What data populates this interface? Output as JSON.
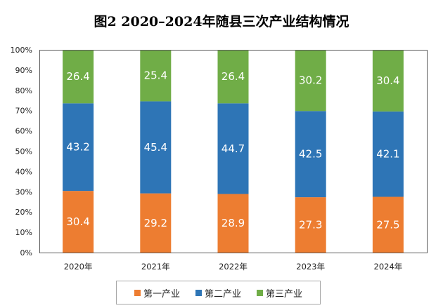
{
  "chart_data": {
    "type": "bar",
    "stacked": true,
    "title": "图2   2020–2024年随县三次产业结构情况",
    "xlabel": "",
    "ylabel": "",
    "categories": [
      "2020年",
      "2021年",
      "2022年",
      "2023年",
      "2024年"
    ],
    "series": [
      {
        "name": "第一产业",
        "color": "#ED7D31",
        "values": [
          30.4,
          29.2,
          28.9,
          27.3,
          27.5
        ]
      },
      {
        "name": "第二产业",
        "color": "#2E75B6",
        "values": [
          43.2,
          45.4,
          44.7,
          42.5,
          42.1
        ]
      },
      {
        "name": "第三产业",
        "color": "#70AD47",
        "values": [
          26.4,
          25.4,
          26.4,
          30.2,
          30.4
        ]
      }
    ],
    "ylim": [
      0,
      100
    ],
    "yticks": [
      "0%",
      "10%",
      "20%",
      "30%",
      "40%",
      "50%",
      "60%",
      "70%",
      "80%",
      "90%",
      "100%"
    ],
    "grid": false,
    "legend_position": "bottom"
  }
}
